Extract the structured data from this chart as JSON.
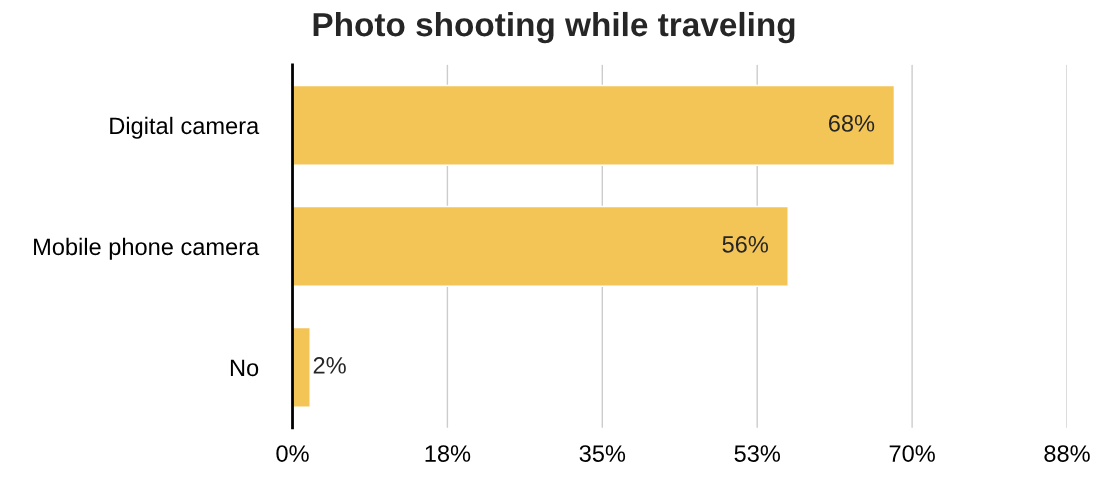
{
  "chart_data": {
    "type": "bar",
    "orientation": "horizontal",
    "title": "Photo shooting while traveling",
    "categories": [
      "Digital camera",
      "Mobile phone camera",
      "No"
    ],
    "values": [
      68,
      56,
      2
    ],
    "value_labels": [
      "68%",
      "56%",
      "2%"
    ],
    "color": "#f3c556",
    "xlim": [
      0,
      87.5
    ],
    "xticks": [
      {
        "value": 0,
        "label": "0%"
      },
      {
        "value": 17.5,
        "label": "18%"
      },
      {
        "value": 35,
        "label": "35%"
      },
      {
        "value": 52.5,
        "label": "53%"
      },
      {
        "value": 70,
        "label": "70%"
      },
      {
        "value": 87.5,
        "label": "88%"
      }
    ],
    "grid": "x",
    "legend": false
  }
}
